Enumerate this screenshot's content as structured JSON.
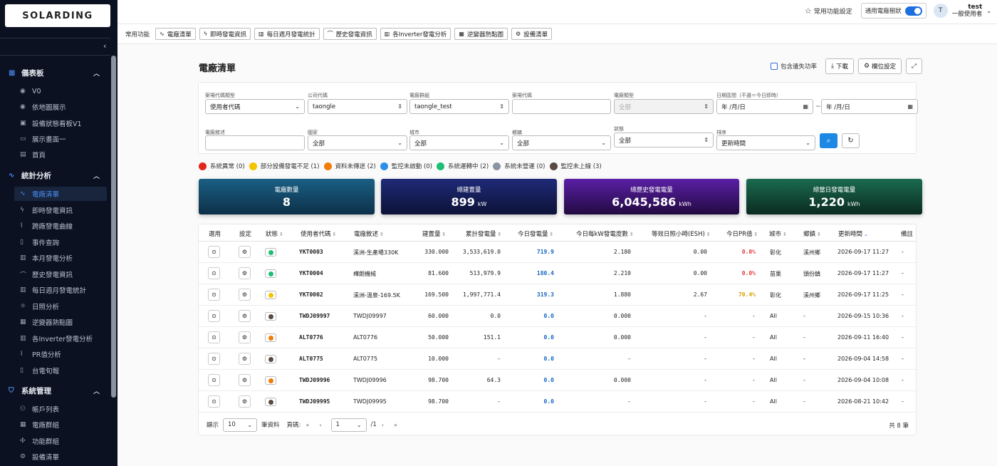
{
  "brand": {
    "logo_text": "SOLARDING"
  },
  "sidebar": {
    "groups": [
      {
        "label": "儀表板",
        "items": [
          {
            "label": "V0"
          },
          {
            "label": "依地圖展示"
          },
          {
            "label": "設備狀態看板V1"
          },
          {
            "label": "展示畫面一"
          },
          {
            "label": "首頁"
          }
        ]
      },
      {
        "label": "統計分析",
        "items": [
          {
            "label": "電廠清單"
          },
          {
            "label": "即時發電資訊"
          },
          {
            "label": "跨廠發電曲線"
          },
          {
            "label": "事件查詢"
          },
          {
            "label": "本月發電分析"
          },
          {
            "label": "歷史發電資訊"
          },
          {
            "label": "每日週月發電統計"
          },
          {
            "label": "日照分析"
          },
          {
            "label": "逆變器熱點圖"
          },
          {
            "label": "各Inverter發電分析"
          },
          {
            "label": "PR值分析"
          },
          {
            "label": "台電旬報"
          }
        ]
      },
      {
        "label": "系統管理",
        "items": [
          {
            "label": "帳戶列表"
          },
          {
            "label": "電廠群組"
          },
          {
            "label": "功能群組"
          },
          {
            "label": "設備清單"
          }
        ]
      }
    ],
    "active_item": "電廠清單"
  },
  "topbar": {
    "favorites_label": "常用功能設定",
    "toggle_label": "通用電廠樹狀",
    "avatar_initial": "T",
    "user_name": "test",
    "user_role": "一般使用者"
  },
  "quickbar": {
    "label": "常用功能",
    "items": [
      {
        "label": "電廠清單",
        "icon": "chart-line-icon"
      },
      {
        "label": "即時發電資訊",
        "icon": "bolt-icon"
      },
      {
        "label": "每日週月發電統計",
        "icon": "bar-chart-icon"
      },
      {
        "label": "歷史發電資訊",
        "icon": "area-chart-icon"
      },
      {
        "label": "各Inverter發電分析",
        "icon": "bar-chart-icon"
      },
      {
        "label": "逆變器熱點圖",
        "icon": "grid-icon"
      },
      {
        "label": "設備清單",
        "icon": "gear-icon"
      }
    ]
  },
  "page": {
    "title": "電廠清單",
    "include_loss_label": "包含遺失功率",
    "download_label": "下載",
    "column_settings_label": "欄位設定"
  },
  "filters": {
    "row1": [
      {
        "label": "案場代碼類型",
        "value": "使用者代碼",
        "type": "select"
      },
      {
        "label": "公司代碼",
        "value": "taongle",
        "type": "spin"
      },
      {
        "label": "電廠群組",
        "value": "taongle_test",
        "type": "spin"
      },
      {
        "label": "案場代碼",
        "value": "",
        "type": "input"
      },
      {
        "label": "電廠類型",
        "value": "全部",
        "type": "disabled"
      },
      {
        "label": "日期區間（不選＝今日即時）",
        "value": "年 /月/日",
        "type": "date"
      }
    ],
    "date_to": "年 /月/日",
    "date_sep": "~",
    "row2": [
      {
        "label": "電廠敘述",
        "value": "",
        "type": "input"
      },
      {
        "label": "國家",
        "value": "全部",
        "type": "select"
      },
      {
        "label": "城市",
        "value": "全部",
        "type": "select"
      },
      {
        "label": "鄉鎮",
        "value": "全部",
        "type": "select"
      },
      {
        "label": "狀態",
        "value": "全部",
        "type": "spin"
      },
      {
        "label": "排序",
        "value": "更新時間",
        "type": "select"
      }
    ]
  },
  "legend": [
    {
      "label": "系統異常 (0)",
      "color": "#e3261c"
    },
    {
      "label": "部分設備發電不足 (1)",
      "color": "#f5c400"
    },
    {
      "label": "資料未傳送 (2)",
      "color": "#f07c0a"
    },
    {
      "label": "監控未啟動 (0)",
      "color": "#2f8fe8"
    },
    {
      "label": "系統運轉中 (2)",
      "color": "#1dbf74"
    },
    {
      "label": "系統未營運 (0)",
      "color": "#8a94a3"
    },
    {
      "label": "監控未上線 (3)",
      "color": "#5a4a42"
    }
  ],
  "stats": [
    {
      "label": "電廠數量",
      "value": "8",
      "unit": ""
    },
    {
      "label": "總建置量",
      "value": "899",
      "unit": "kW"
    },
    {
      "label": "總歷史發電電量",
      "value": "6,045,586",
      "unit": "kWh"
    },
    {
      "label": "總當日發電電量",
      "value": "1,220",
      "unit": "kWh"
    }
  ],
  "table": {
    "headers": [
      "選用",
      "設定",
      "狀態",
      "使用者代碼",
      "電廠敘述",
      "建置量",
      "累計發電量",
      "今日發電量",
      "今日每kW發電度數",
      "等效日照小時(ESH)",
      "今日PR值",
      "城市",
      "鄉鎮",
      "更新時間",
      "備註"
    ],
    "rows": [
      {
        "status_color": "#1dbf74",
        "code": "YKT0003",
        "desc": "溪洲-生產場330K",
        "capacity": "330.000",
        "total": "3,533,619.0",
        "today": "719.9",
        "per_kw": "2.180",
        "esh": "0.00",
        "pr": "0.0%",
        "pr_color": "red",
        "city": "彰化",
        "town": "溪州鄉",
        "updated": "2026-09-17 11:27",
        "note": "-"
      },
      {
        "status_color": "#1dbf74",
        "code": "YKT0004",
        "desc": "樺朗機械",
        "capacity": "81.600",
        "total": "513,979.9",
        "today": "180.4",
        "per_kw": "2.210",
        "esh": "0.00",
        "pr": "0.0%",
        "pr_color": "red",
        "city": "苗栗",
        "town": "頭份鎮",
        "updated": "2026-09-17 11:27",
        "note": "-"
      },
      {
        "status_color": "#f5c400",
        "code": "YKT0002",
        "desc": "溪洲-溫泉-169.5K",
        "capacity": "169.500",
        "total": "1,997,771.4",
        "today": "319.3",
        "per_kw": "1.880",
        "esh": "2.67",
        "pr": "70.4%",
        "pr_color": "orange",
        "city": "彰化",
        "town": "溪州鄉",
        "updated": "2026-09-17 11:25",
        "note": "-"
      },
      {
        "status_color": "#5a4a42",
        "code": "TWDJ09997",
        "desc": "TWDJ09997",
        "capacity": "60.000",
        "total": "0.0",
        "today": "0.0",
        "per_kw": "0.000",
        "esh": "-",
        "pr": "-",
        "pr_color": "",
        "city": "All",
        "town": "-",
        "updated": "2026-09-15 10:36",
        "note": "-"
      },
      {
        "status_color": "#f07c0a",
        "code": "ALT0776",
        "desc": "ALT0776",
        "capacity": "50.000",
        "total": "151.1",
        "today": "0.0",
        "per_kw": "0.000",
        "esh": "-",
        "pr": "-",
        "pr_color": "",
        "city": "All",
        "town": "-",
        "updated": "2026-09-11 16:40",
        "note": "-"
      },
      {
        "status_color": "#5a4a42",
        "code": "ALT0775",
        "desc": "ALT0775",
        "capacity": "10.000",
        "total": "-",
        "today": "0.0",
        "per_kw": "-",
        "esh": "-",
        "pr": "-",
        "pr_color": "",
        "city": "All",
        "town": "-",
        "updated": "2026-09-04 14:58",
        "note": "-"
      },
      {
        "status_color": "#f07c0a",
        "code": "TWDJ09996",
        "desc": "TWDJ09996",
        "capacity": "98.700",
        "total": "64.3",
        "today": "0.0",
        "per_kw": "0.000",
        "esh": "-",
        "pr": "-",
        "pr_color": "",
        "city": "All",
        "town": "-",
        "updated": "2026-09-04 10:08",
        "note": "-"
      },
      {
        "status_color": "#5a4a42",
        "code": "TWDJ09995",
        "desc": "TWDJ09995",
        "capacity": "98.700",
        "total": "-",
        "today": "0.0",
        "per_kw": "-",
        "esh": "-",
        "pr": "-",
        "pr_color": "",
        "city": "All",
        "town": "-",
        "updated": "2026-08-21 10:42",
        "note": "-"
      }
    ]
  },
  "pagination": {
    "show_label": "顯示",
    "page_size": "10",
    "records_label": "筆資料",
    "page_label": "頁碼:",
    "current_page": "1",
    "total_pages": "/1",
    "total_label": "共 8 筆"
  }
}
